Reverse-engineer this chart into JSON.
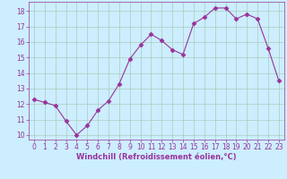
{
  "x": [
    0,
    1,
    2,
    3,
    4,
    5,
    6,
    7,
    8,
    9,
    10,
    11,
    12,
    13,
    14,
    15,
    16,
    17,
    18,
    19,
    20,
    21,
    22,
    23
  ],
  "y": [
    12.3,
    12.1,
    11.9,
    10.9,
    10.0,
    10.6,
    11.6,
    12.2,
    13.3,
    14.9,
    15.8,
    16.5,
    16.1,
    15.5,
    15.2,
    17.2,
    17.6,
    18.2,
    18.2,
    17.5,
    17.8,
    17.5,
    15.6,
    13.5
  ],
  "xlabel": "Windchill (Refroidissement éolien,°C)",
  "ylim": [
    9.7,
    18.6
  ],
  "xlim": [
    -0.5,
    23.5
  ],
  "yticks": [
    10,
    11,
    12,
    13,
    14,
    15,
    16,
    17,
    18
  ],
  "xticks": [
    0,
    1,
    2,
    3,
    4,
    5,
    6,
    7,
    8,
    9,
    10,
    11,
    12,
    13,
    14,
    15,
    16,
    17,
    18,
    19,
    20,
    21,
    22,
    23
  ],
  "line_color": "#993399",
  "marker_color": "#993399",
  "bg_color": "#cceeff",
  "grid_color": "#aaccbb",
  "tick_fontsize": 5.5,
  "xlabel_fontsize": 6.0
}
